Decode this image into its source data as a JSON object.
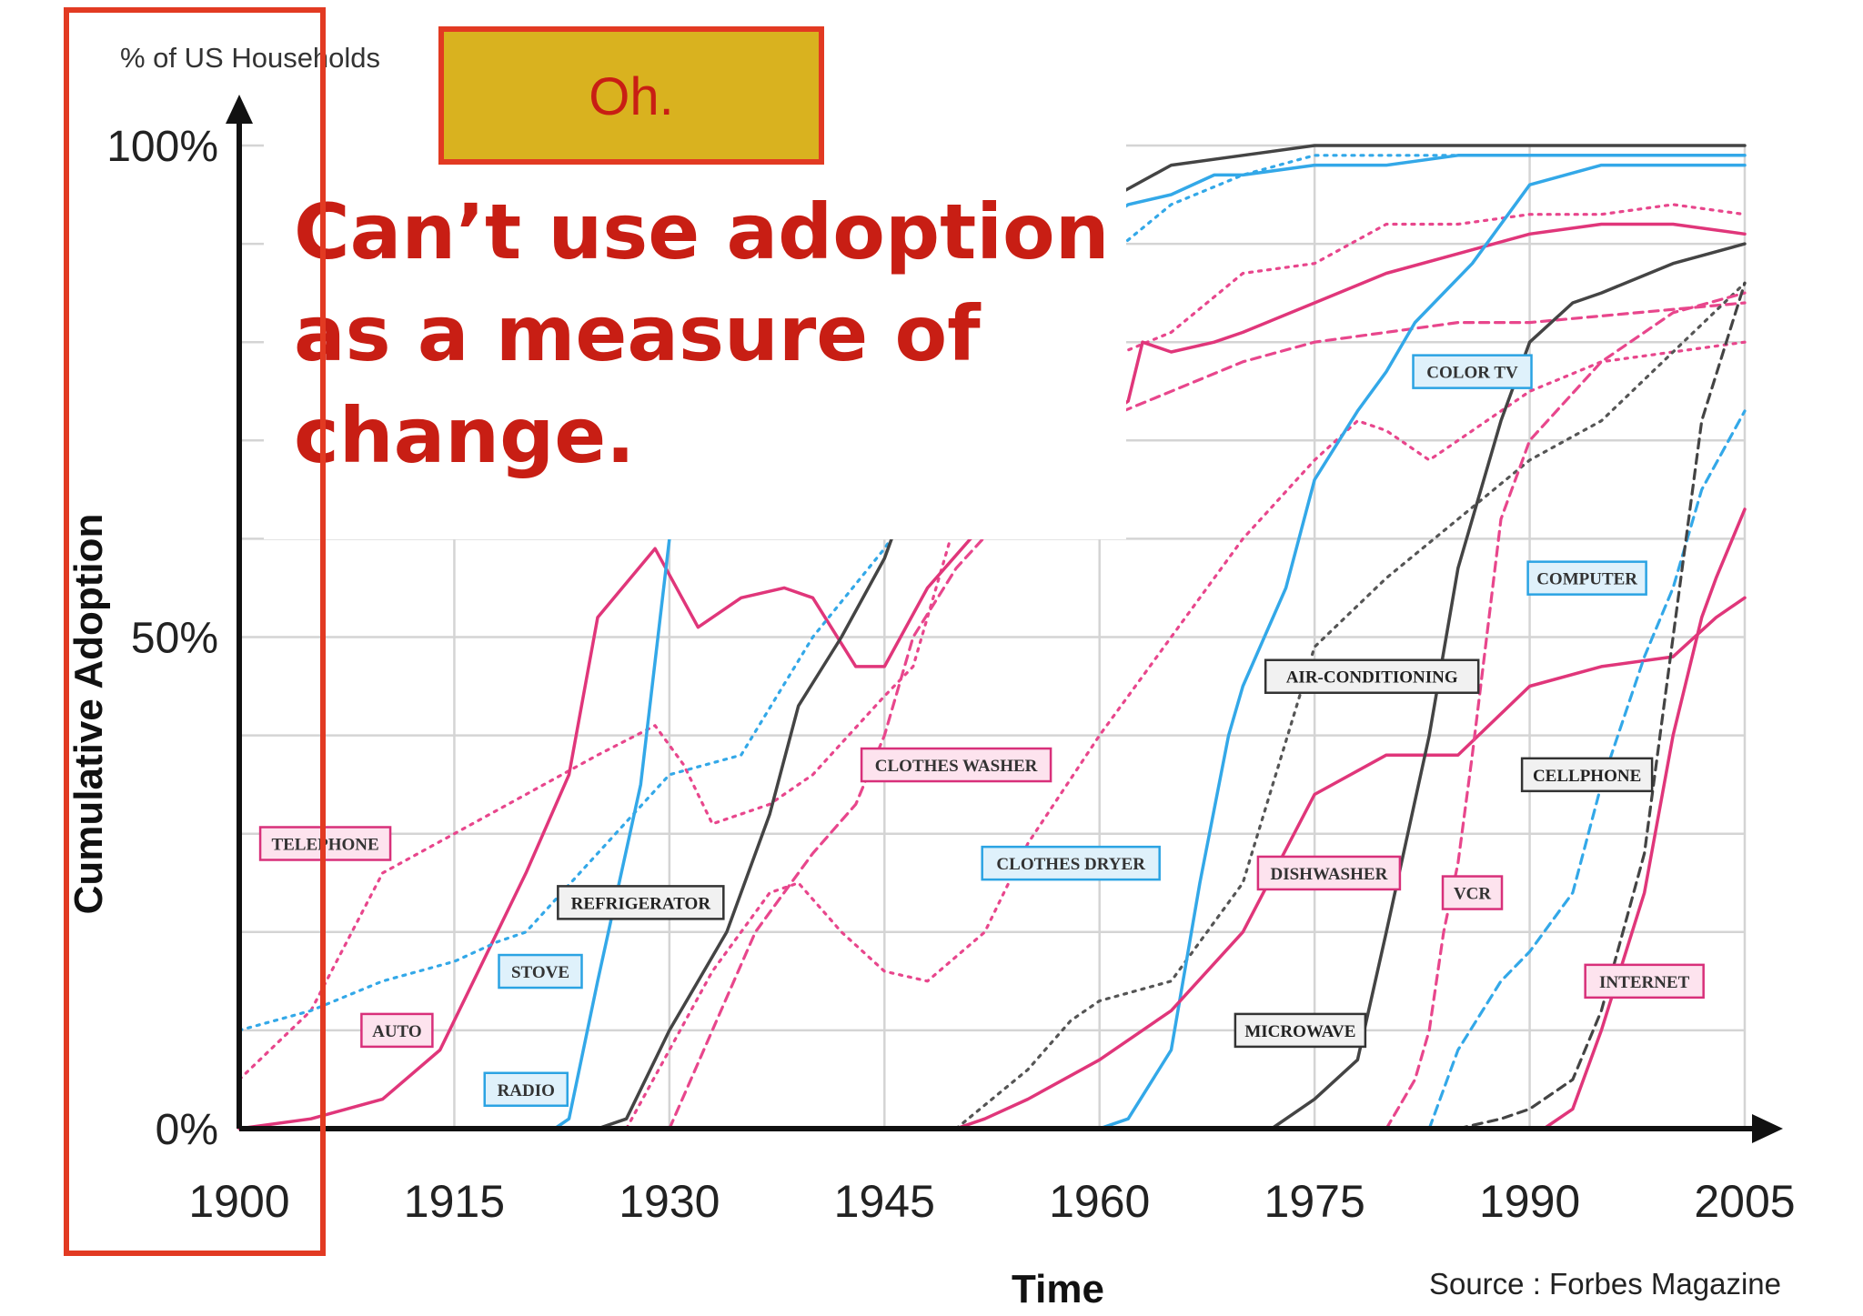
{
  "chart_data": {
    "type": "line",
    "title": "",
    "y_axis_caption": "% of US Households",
    "ylabel": "Cumulative Adoption",
    "xlabel": "Time",
    "source": "Source : Forbes Magazine",
    "xlim": [
      1900,
      2005
    ],
    "ylim": [
      0,
      100
    ],
    "x_ticks": [
      "1900",
      "1915",
      "1930",
      "1945",
      "1960",
      "1975",
      "1990",
      "2005"
    ],
    "y_ticks": [
      {
        "value": 0,
        "label": "0%"
      },
      {
        "value": 50,
        "label": "50%"
      },
      {
        "value": 100,
        "label": "100%"
      }
    ],
    "grid": true,
    "series": [
      {
        "name": "TELEPHONE",
        "color": "#e8468c",
        "dash": "dotted",
        "x": [
          1900,
          1905,
          1910,
          1915,
          1920,
          1925,
          1929,
          1931,
          1933,
          1937,
          1940,
          1945,
          1947,
          1950,
          1955,
          1960,
          1965,
          1970,
          1975,
          1980,
          1985,
          1990,
          1995,
          2000,
          2005
        ],
        "y": [
          5,
          12,
          26,
          30,
          34,
          38,
          41,
          37,
          31,
          33,
          36,
          44,
          47,
          62,
          70,
          78,
          81,
          87,
          88,
          92,
          92,
          93,
          93,
          94,
          93
        ]
      },
      {
        "name": "AUTO",
        "color": "#e0367a",
        "dash": "solid",
        "x": [
          1900,
          1905,
          1910,
          1914,
          1918,
          1920,
          1923,
          1925,
          1929,
          1932,
          1935,
          1938,
          1940,
          1943,
          1945,
          1948,
          1951,
          1955,
          1960,
          1962,
          1963,
          1965,
          1968,
          1970,
          1975,
          1980,
          1985,
          1990,
          1995,
          2000,
          2005
        ],
        "y": [
          0,
          1,
          3,
          8,
          20,
          26,
          36,
          52,
          59,
          51,
          54,
          55,
          54,
          47,
          47,
          55,
          60,
          65,
          72,
          74,
          80,
          79,
          80,
          81,
          84,
          87,
          89,
          91,
          92,
          92,
          91
        ]
      },
      {
        "name": "STOVE",
        "color": "#33a8e8",
        "dash": "dotted",
        "x": [
          1900,
          1905,
          1910,
          1915,
          1918,
          1920,
          1925,
          1930,
          1935,
          1940,
          1945,
          1950,
          1955,
          1960,
          1965,
          1970,
          1975,
          1980,
          1985,
          1990,
          2005
        ],
        "y": [
          10,
          12,
          15,
          17,
          19,
          20,
          28,
          36,
          38,
          50,
          59,
          70,
          80,
          88,
          94,
          97,
          99,
          99,
          99,
          99,
          99
        ]
      },
      {
        "name": "RADIO",
        "color": "#33a8e8",
        "dash": "solid",
        "x": [
          1922,
          1923,
          1925,
          1928,
          1930,
          1932,
          1935,
          1940,
          1945,
          1950,
          1955,
          1960,
          1962,
          1965,
          1968,
          1970,
          1975,
          1980,
          1985,
          1990,
          2005
        ],
        "y": [
          0,
          1,
          15,
          35,
          60,
          75,
          80,
          82,
          85,
          88,
          90,
          92,
          94,
          95,
          97,
          97,
          98,
          98,
          99,
          99,
          99
        ]
      },
      {
        "name": "REFRIGERATOR",
        "color": "#444444",
        "dash": "solid",
        "x": [
          1925,
          1927,
          1930,
          1934,
          1937,
          1939,
          1942,
          1945,
          1948,
          1950,
          1955,
          1960,
          1965,
          1970,
          1975,
          1990,
          2005
        ],
        "y": [
          0,
          1,
          10,
          20,
          32,
          43,
          50,
          58,
          70,
          80,
          90,
          94,
          98,
          99,
          100,
          100,
          100
        ]
      },
      {
        "name": "CLOTHES WASHER",
        "color": "#e8468c",
        "dash": "dashed",
        "x": [
          1930,
          1933,
          1936,
          1940,
          1943,
          1945,
          1947,
          1950,
          1955,
          1960,
          1965,
          1970,
          1975,
          1980,
          1985,
          1990,
          2005
        ],
        "y": [
          0,
          10,
          20,
          28,
          33,
          40,
          50,
          57,
          65,
          72,
          75,
          78,
          80,
          81,
          82,
          82,
          84
        ]
      },
      {
        "name": "CLOTHES DRYER",
        "color": "#e8468c",
        "dash": "dotted",
        "x": [
          1927,
          1930,
          1933,
          1937,
          1939,
          1942,
          1945,
          1948,
          1952,
          1955,
          1960,
          1965,
          1970,
          1975,
          1978,
          1980,
          1983,
          1985,
          1990,
          1995,
          2005
        ],
        "y": [
          0,
          8,
          16,
          24,
          25,
          20,
          16,
          15,
          20,
          29,
          40,
          50,
          60,
          68,
          72,
          71,
          68,
          70,
          75,
          78,
          80
        ]
      },
      {
        "name": "AIR-CONDITIONING",
        "color": "#555555",
        "dash": "dotted",
        "x": [
          1950,
          1955,
          1958,
          1960,
          1965,
          1970,
          1975,
          1980,
          1985,
          1990,
          1995,
          2005
        ],
        "y": [
          0,
          6,
          11,
          13,
          15,
          25,
          49,
          56,
          62,
          68,
          72,
          86
        ]
      },
      {
        "name": "COLOR TV",
        "color": "#33a8e8",
        "dash": "solid",
        "x": [
          1960,
          1962,
          1965,
          1967,
          1969,
          1970,
          1973,
          1975,
          1978,
          1980,
          1982,
          1984,
          1986,
          1990,
          1995,
          2000,
          2005
        ],
        "y": [
          0,
          1,
          8,
          25,
          40,
          45,
          55,
          66,
          73,
          77,
          82,
          85,
          88,
          96,
          98,
          98,
          98
        ]
      },
      {
        "name": "DISHWASHER",
        "color": "#e0367a",
        "dash": "solid",
        "x": [
          1950,
          1952,
          1955,
          1960,
          1965,
          1970,
          1975,
          1980,
          1985,
          1990,
          1995,
          2000,
          2003,
          2005
        ],
        "y": [
          0,
          1,
          3,
          7,
          12,
          20,
          34,
          38,
          38,
          45,
          47,
          48,
          52,
          54
        ]
      },
      {
        "name": "MICROWAVE",
        "color": "#444444",
        "dash": "solid",
        "x": [
          1972,
          1975,
          1978,
          1980,
          1983,
          1985,
          1988,
          1990,
          1993,
          1995,
          2000,
          2005
        ],
        "y": [
          0,
          3,
          7,
          20,
          40,
          57,
          72,
          80,
          84,
          85,
          88,
          90
        ]
      },
      {
        "name": "VCR",
        "color": "#e8468c",
        "dash": "dashed",
        "x": [
          1980,
          1982,
          1983,
          1984,
          1985,
          1986,
          1987,
          1988,
          1990,
          1995,
          2000,
          2005
        ],
        "y": [
          0,
          5,
          10,
          20,
          27,
          38,
          50,
          62,
          70,
          78,
          83,
          85
        ]
      },
      {
        "name": "COMPUTER",
        "color": "#33a8e8",
        "dash": "dashed",
        "x": [
          1983,
          1985,
          1988,
          1990,
          1993,
          1995,
          1998,
          2000,
          2002,
          2005
        ],
        "y": [
          0,
          8,
          15,
          18,
          24,
          35,
          48,
          55,
          65,
          73
        ]
      },
      {
        "name": "CELLPHONE",
        "color": "#444444",
        "dash": "dashed",
        "x": [
          1985,
          1988,
          1990,
          1993,
          1995,
          1998,
          2000,
          2002,
          2005
        ],
        "y": [
          0,
          1,
          2,
          5,
          12,
          28,
          50,
          72,
          86
        ]
      },
      {
        "name": "INTERNET",
        "color": "#e0367a",
        "dash": "solid",
        "x": [
          1991,
          1993,
          1995,
          1998,
          2000,
          2002,
          2003,
          2005
        ],
        "y": [
          0,
          2,
          10,
          24,
          40,
          52,
          56,
          63
        ]
      }
    ],
    "annotations": [
      {
        "text": "TELEPHONE",
        "style": "pink",
        "x": 1906,
        "y": 29
      },
      {
        "text": "AUTO",
        "style": "pink",
        "x": 1911,
        "y": 10
      },
      {
        "text": "STOVE",
        "style": "blue",
        "x": 1921,
        "y": 16
      },
      {
        "text": "RADIO",
        "style": "blue",
        "x": 1920,
        "y": 4
      },
      {
        "text": "REFRIGERATOR",
        "style": "dark",
        "x": 1928,
        "y": 23
      },
      {
        "text": "CLOTHES WASHER",
        "style": "pink",
        "x": 1950,
        "y": 37
      },
      {
        "text": "CLOTHES DRYER",
        "style": "blue",
        "x": 1958,
        "y": 27
      },
      {
        "text": "DISHWASHER",
        "style": "pink",
        "x": 1976,
        "y": 26
      },
      {
        "text": "MICROWAVE",
        "style": "dark",
        "x": 1974,
        "y": 10
      },
      {
        "text": "VCR",
        "style": "pink",
        "x": 1986,
        "y": 24
      },
      {
        "text": "AIR-CONDITIONING",
        "style": "dark",
        "x": 1979,
        "y": 46
      },
      {
        "text": "COLOR TV",
        "style": "blue",
        "x": 1986,
        "y": 77
      },
      {
        "text": "COMPUTER",
        "style": "blue",
        "x": 1994,
        "y": 56
      },
      {
        "text": "CELLPHONE",
        "style": "dark",
        "x": 1994,
        "y": 36
      },
      {
        "text": "INTERNET",
        "style": "pink",
        "x": 1998,
        "y": 15
      }
    ]
  },
  "overlay": {
    "badge_text": "Oh.",
    "note_lines": [
      "Can’t use adoption",
      "as a measure of",
      "change."
    ],
    "badge_color": "#d9b21f",
    "accent_color": "#e23a22",
    "note_color": "#c81e14"
  }
}
